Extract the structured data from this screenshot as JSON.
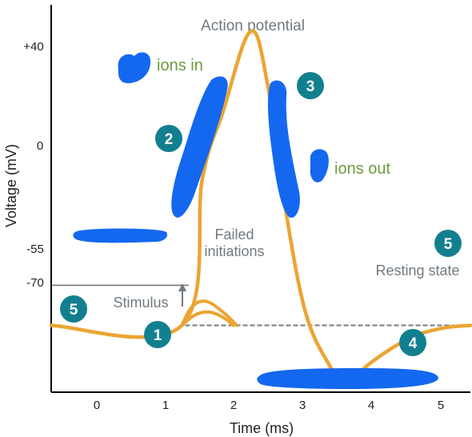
{
  "chart_data": {
    "type": "line",
    "title": "Action potential",
    "xlabel": "Time (ms)",
    "ylabel": "Voltage (mV)",
    "x_ticks": [
      "0",
      "1",
      "2",
      "3",
      "4",
      "5"
    ],
    "y_ticks": [
      "+40",
      "0",
      "-55",
      "-70"
    ],
    "xlim": [
      -0.7,
      5.4
    ],
    "ylim": [
      -95,
      50
    ],
    "series": [
      {
        "values": [
          [
            -0.7,
            -70
          ],
          [
            1.2,
            -70
          ],
          [
            1.5,
            -15
          ],
          [
            1.8,
            10
          ],
          [
            2.2,
            40
          ],
          [
            2.45,
            20
          ],
          [
            2.7,
            -25
          ],
          [
            3.0,
            -65
          ],
          [
            3.35,
            -85
          ],
          [
            3.6,
            -93
          ],
          [
            3.9,
            -85
          ],
          [
            4.5,
            -75
          ],
          [
            5.0,
            -71
          ],
          [
            5.4,
            -70
          ]
        ]
      }
    ],
    "failed_initiations": [
      {
        "values": [
          [
            1.2,
            -70
          ],
          [
            1.35,
            -63
          ],
          [
            1.55,
            -61
          ],
          [
            1.8,
            -65
          ],
          [
            2.0,
            -70
          ]
        ]
      },
      {
        "values": [
          [
            1.2,
            -70
          ],
          [
            1.4,
            -66
          ],
          [
            1.6,
            -65
          ],
          [
            1.8,
            -67
          ],
          [
            1.95,
            -70
          ]
        ]
      }
    ],
    "threshold_mV": -55,
    "resting_mV": -70,
    "colors": {
      "curve": "#eaa533",
      "annotation_text": "#707a80",
      "phase_label": "#6c9a3f",
      "badge": "#127f8f",
      "redaction": "#1468f0",
      "axis": "#000000"
    }
  },
  "annotations": {
    "stimulus": "Stimulus",
    "failed_initiations": [
      "Failed",
      "initiations"
    ],
    "resting_state": "Resting state",
    "ions_in": "ions in",
    "ions_out": "ions out"
  },
  "phase_badges": [
    "1",
    "2",
    "3",
    "4",
    "5",
    "5"
  ]
}
